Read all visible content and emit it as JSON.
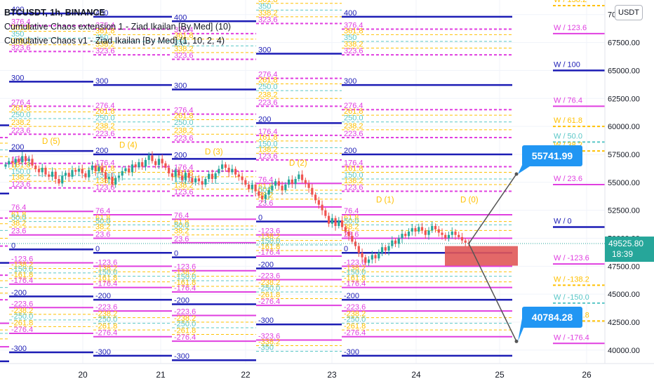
{
  "header": {
    "symbol_line": "BTCUSDT, 1h, BINANCE",
    "indicator_1": "Cumulative Chaos extension 1 - Ziad Ikailan [By Med] (10)",
    "indicator_2": "Cumulative Chaos v1 - Ziad Ikailan [By Med] (1, 10, 2, 4)",
    "currency_button": "USDT"
  },
  "colors": {
    "background": "#ffffff",
    "candle_up": "#26a69a",
    "candle_down": "#ef5350",
    "level_blue": "#1c1cb5",
    "level_magenta": "#e03fe0",
    "level_orange": "#ffc000",
    "level_teal": "#59c7c7",
    "callout": "#2196f3",
    "zone": "#e05858",
    "price_tag": "#26a69a"
  },
  "price_tags": {
    "current": "49525.80",
    "countdown": "18:39"
  },
  "callouts": [
    {
      "label": "55741.99",
      "value": 55741.99
    },
    {
      "label": "40784.28",
      "value": 40784.28
    }
  ],
  "chart_data": {
    "type": "line",
    "ylim": [
      38800,
      71300
    ],
    "x_tick_labels": [
      "20",
      "21",
      "22",
      "23",
      "24",
      "25",
      "26"
    ],
    "y_tick_labels": [
      "40000.00",
      "42500.00",
      "45000.00",
      "47500.00",
      "50000.00",
      "52500.00",
      "55000.00",
      "57500.00",
      "60000.00",
      "62500.00",
      "65000.00",
      "67500.00",
      "70000.00"
    ],
    "close_prices": [
      56600,
      56900,
      56750,
      57100,
      56800,
      57350,
      56900,
      57100,
      56500,
      56200,
      55900,
      56300,
      55700,
      55500,
      55950,
      55300,
      54900,
      55600,
      55850,
      55500,
      56100,
      55950,
      56200,
      55800,
      55450,
      56100,
      56500,
      56000,
      56350,
      55900,
      55300,
      55500,
      54800,
      55400,
      55600,
      56000,
      56250,
      55900,
      56600,
      56350,
      56800,
      56400,
      57000,
      57400,
      56900,
      56550,
      57100,
      56700,
      56300,
      55800,
      55500,
      56100,
      55600,
      55200,
      55850,
      55400,
      55000,
      55350,
      55100,
      54800,
      55300,
      55750,
      55300,
      55800,
      56200,
      56600,
      56300,
      55900,
      56200,
      55700,
      55500,
      55200,
      54800,
      54400,
      54800,
      54200,
      53800,
      53500,
      53900,
      54300,
      54700,
      55100,
      54700,
      54300,
      54800,
      55250,
      54850,
      55300,
      55700,
      55200,
      54900,
      54500,
      53900,
      53400,
      53000,
      52500,
      52000,
      51300,
      51800,
      51100,
      51600,
      51000,
      50600,
      50200,
      49700,
      49300,
      48700,
      48300,
      47800,
      48100,
      48500,
      48200,
      48700,
      49200,
      48900,
      49300,
      49800,
      49500,
      50000,
      50400,
      50200,
      50600,
      50900,
      50600,
      51000,
      50700,
      50300,
      50700,
      51100,
      50800,
      50500,
      50300,
      50000,
      50300,
      50600,
      50300,
      50100,
      49800,
      49600,
      49525.8
    ],
    "projection_up": [
      [
        49525.8,
        55741.99
      ]
    ],
    "projection_down": [
      [
        49525.8,
        40784.28
      ]
    ],
    "resistance_zone": [
      47550,
      49300
    ],
    "levels": [
      {
        "label": "400",
        "value": 72600,
        "color": "blue"
      },
      {
        "label": "376.4",
        "value": 71500,
        "color": "magenta"
      },
      {
        "label": "361.8",
        "value": 71000,
        "color": "orange"
      },
      {
        "label": "350",
        "value": 70400,
        "color": "teal"
      },
      {
        "label": "338.2",
        "value": 69800,
        "color": "orange"
      },
      {
        "label": "323.6",
        "value": 69200,
        "color": "magenta"
      },
      {
        "label": "300",
        "value": 66500,
        "color": "blue"
      },
      {
        "label": "276.4",
        "value": 64300,
        "color": "magenta"
      },
      {
        "label": "261.8",
        "value": 63800,
        "color": "orange"
      },
      {
        "label": "250.0",
        "value": 63200,
        "color": "teal"
      },
      {
        "label": "238.2",
        "value": 62500,
        "color": "orange"
      },
      {
        "label": "223.6",
        "value": 61800,
        "color": "magenta"
      },
      {
        "label": "200",
        "value": 60300,
        "color": "blue"
      },
      {
        "label": "176.4",
        "value": 59200,
        "color": "magenta"
      },
      {
        "label": "161.8",
        "value": 58700,
        "color": "orange"
      },
      {
        "label": "150.0",
        "value": 58100,
        "color": "teal"
      },
      {
        "label": "138.2",
        "value": 57600,
        "color": "orange"
      },
      {
        "label": "123.6",
        "value": 57000,
        "color": "magenta"
      },
      {
        "label": "76.4",
        "value": 54900,
        "color": "magenta"
      },
      {
        "label": "61.8",
        "value": 54300,
        "color": "orange"
      },
      {
        "label": "50.0",
        "value": 54000,
        "color": "teal"
      },
      {
        "label": "38.2",
        "value": 53500,
        "color": "orange"
      },
      {
        "label": "23.6",
        "value": 52800,
        "color": "magenta"
      },
      {
        "label": "0",
        "value": 51500,
        "color": "blue"
      },
      {
        "label": "-123.6",
        "value": 50300,
        "color": "magenta"
      },
      {
        "label": "-138.2",
        "value": 49800,
        "color": "orange"
      },
      {
        "label": "-150.0",
        "value": 49400,
        "color": "teal"
      },
      {
        "label": "-161.8",
        "value": 48900,
        "color": "orange"
      },
      {
        "label": "-176.4",
        "value": 48400,
        "color": "magenta"
      },
      {
        "label": "-200",
        "value": 47300,
        "color": "blue"
      },
      {
        "label": "-223.6",
        "value": 46300,
        "color": "magenta"
      },
      {
        "label": "-238.2",
        "value": 45700,
        "color": "orange"
      },
      {
        "label": "-250.0",
        "value": 45200,
        "color": "teal"
      },
      {
        "label": "-261.8",
        "value": 44600,
        "color": "orange"
      },
      {
        "label": "-276.4",
        "value": 44000,
        "color": "magenta"
      },
      {
        "label": "-300",
        "value": 42300,
        "color": "blue"
      },
      {
        "label": "-323.6",
        "value": 40900,
        "color": "magenta"
      },
      {
        "label": "-338.2",
        "value": 40400,
        "color": "orange"
      },
      {
        "label": "-350",
        "value": 39900,
        "color": "teal"
      }
    ],
    "right_levels": [
      {
        "label": "W / 138.2",
        "value": 70800,
        "color": "orange"
      },
      {
        "label": "W / 123.6",
        "value": 68300,
        "color": "magenta"
      },
      {
        "label": "W / 100",
        "value": 65000,
        "color": "blue"
      },
      {
        "label": "W / 76.4",
        "value": 61800,
        "color": "magenta"
      },
      {
        "label": "W / 61.8",
        "value": 60000,
        "color": "orange"
      },
      {
        "label": "W / 50.0",
        "value": 58600,
        "color": "teal"
      },
      {
        "label": "W / 38.2",
        "value": 57800,
        "color": "orange"
      },
      {
        "label": "W / 23.6",
        "value": 54800,
        "color": "magenta"
      },
      {
        "label": "W / 0",
        "value": 51000,
        "color": "blue"
      },
      {
        "label": "W / -123.6",
        "value": 47700,
        "color": "magenta"
      },
      {
        "label": "W / -138.2",
        "value": 45800,
        "color": "orange"
      },
      {
        "label": "W / -150.0",
        "value": 44200,
        "color": "teal"
      },
      {
        "label": "W / -161.8",
        "value": 42600,
        "color": "orange"
      },
      {
        "label": "W / -176.4",
        "value": 40600,
        "color": "magenta"
      }
    ],
    "day_labels": [
      "D (5)",
      "D (4)",
      "D (3)",
      "D (2)",
      "D (1)",
      "D (0)"
    ]
  }
}
